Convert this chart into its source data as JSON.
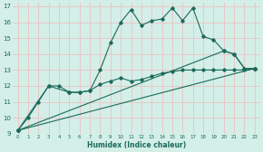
{
  "xlabel": "Humidex (Indice chaleur)",
  "xlim": [
    -0.5,
    23.5
  ],
  "ylim": [
    9,
    17.2
  ],
  "yticks": [
    9,
    10,
    11,
    12,
    13,
    14,
    15,
    16,
    17
  ],
  "xticks": [
    0,
    1,
    2,
    3,
    4,
    5,
    6,
    7,
    8,
    9,
    10,
    11,
    12,
    13,
    14,
    15,
    16,
    17,
    18,
    19,
    20,
    21,
    22,
    23
  ],
  "bg_color": "#d4eee8",
  "line_color": "#1a6b5a",
  "grid_color": "#e8c8c8",
  "lines": [
    {
      "x": [
        0,
        1,
        2,
        3,
        4,
        5,
        6,
        7,
        8,
        9,
        10,
        11,
        12,
        13,
        14,
        15,
        16,
        17,
        18,
        19,
        20,
        21,
        22,
        23
      ],
      "y": [
        9.2,
        10.0,
        11.0,
        12.0,
        12.0,
        11.6,
        11.6,
        11.7,
        13.0,
        14.7,
        16.0,
        16.8,
        15.8,
        16.1,
        16.2,
        16.9,
        16.1,
        16.9,
        15.1,
        14.9,
        14.2,
        14.0,
        13.1,
        13.1
      ]
    },
    {
      "x": [
        0,
        3,
        5,
        6,
        7,
        8,
        9,
        10,
        11,
        12,
        13,
        14,
        15,
        16,
        17,
        18,
        19,
        20,
        21,
        22,
        23
      ],
      "y": [
        9.2,
        12.0,
        11.6,
        11.6,
        11.7,
        12.1,
        12.3,
        12.5,
        12.3,
        12.4,
        12.6,
        12.8,
        12.9,
        13.0,
        13.0,
        13.0,
        13.0,
        13.0,
        13.0,
        13.0,
        13.1
      ]
    },
    {
      "x": [
        0,
        23
      ],
      "y": [
        9.2,
        13.1
      ]
    },
    {
      "x": [
        0,
        20,
        21,
        22,
        23
      ],
      "y": [
        9.2,
        14.2,
        14.0,
        13.1,
        13.1
      ]
    }
  ]
}
